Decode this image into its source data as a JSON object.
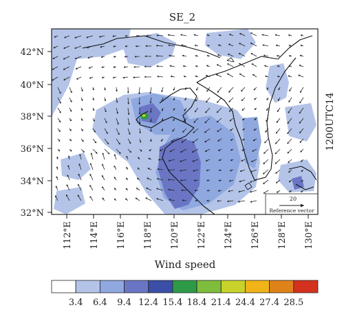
{
  "panel_title": "SE_2",
  "time_label": "1200UTC14",
  "lat_labels": [
    "42°N",
    "40°N",
    "38°N",
    "36°N",
    "34°N",
    "32°N"
  ],
  "lon_labels": [
    "112°E",
    "114°E",
    "116°E",
    "118°E",
    "120°E",
    "122°E",
    "124°E",
    "126°E",
    "128°E",
    "130°E"
  ],
  "reference_vector": {
    "value": "20",
    "label": "Reference vector"
  },
  "colorbar": {
    "title": "Wind speed",
    "levels": [
      "3.4",
      "6.4",
      "9.4",
      "12.4",
      "15.4",
      "18.4",
      "21.4",
      "24.4",
      "27.4",
      "28.5"
    ],
    "colors": [
      "#ffffff",
      "#b4c4e8",
      "#8fa8e0",
      "#6a76c4",
      "#3b4fa8",
      "#2e9a48",
      "#7fbd3c",
      "#c8d22a",
      "#f0b418",
      "#e0821a",
      "#d4321e"
    ]
  },
  "map_colors": {
    "light": "#b4c4e8",
    "mid": "#8fa8e0",
    "dark": "#6a76c4",
    "coast": "#111111"
  }
}
